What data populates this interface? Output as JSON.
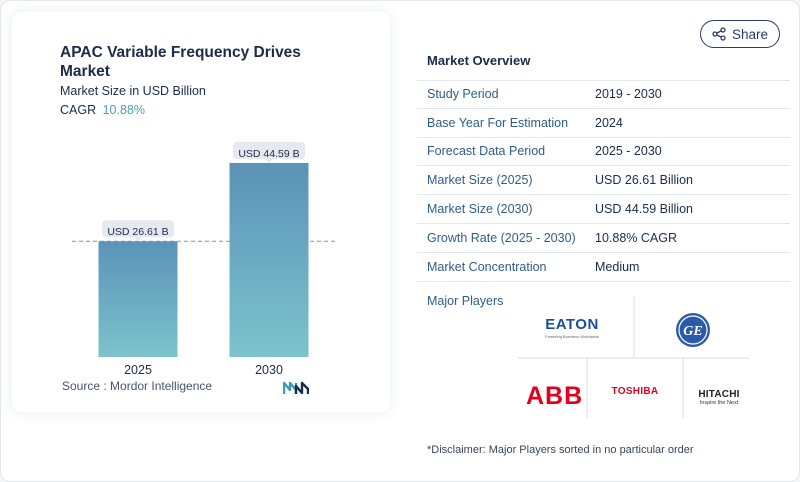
{
  "share": {
    "label": "Share",
    "icon": "share-icon"
  },
  "chart": {
    "title": "APAC Variable Frequency Drives Market",
    "subtitle": "Market Size in USD Billion",
    "cagr_label": "CAGR",
    "cagr_value": "10.88%",
    "source": "Source :  Mordor Intelligence"
  },
  "chart_data": {
    "type": "bar",
    "categories": [
      "2025",
      "2030"
    ],
    "values": [
      26.61,
      44.59
    ],
    "data_labels": [
      "USD 26.61 B",
      "USD 44.59 B"
    ],
    "title": "APAC Variable Frequency Drives Market",
    "ylabel": "Market Size in USD Billion",
    "ylim": [
      0,
      44.59
    ],
    "reference_line": 26.61,
    "colors": {
      "bar_top": "#5b93b8",
      "bar_bottom": "#7cc3cc",
      "label_bg": "#e6e9ef"
    }
  },
  "overview": {
    "title": "Market Overview",
    "rows": [
      {
        "key": "Study Period",
        "value": "2019 - 2030"
      },
      {
        "key": "Base Year For Estimation",
        "value": "2024"
      },
      {
        "key": "Forecast Data Period",
        "value": "2025 - 2030"
      },
      {
        "key": "Market Size (2025)",
        "value": "USD 26.61 Billion"
      },
      {
        "key": "Market Size (2030)",
        "value": "USD 44.59 Billion"
      },
      {
        "key": "Growth Rate (2025 - 2030)",
        "value": "10.88% CAGR"
      },
      {
        "key": "Market Concentration",
        "value": "Medium"
      }
    ],
    "players_label": "Major Players"
  },
  "players": {
    "eaton": {
      "name": "EATON",
      "tagline": "Powering Business Worldwide"
    },
    "ge": {
      "name": "GE"
    },
    "abb": {
      "name": "ABB"
    },
    "toshiba": {
      "name": "TOSHIBA"
    },
    "hitachi": {
      "name": "HITACHI",
      "tagline": "Inspire the Next"
    }
  },
  "disclaimer": "*Disclaimer: Major Players sorted in no particular order",
  "colors": {
    "accent": "#4e9fb4",
    "navy": "#1c2b4a",
    "link": "#2f5d8c",
    "abb_red": "#e2001a"
  }
}
